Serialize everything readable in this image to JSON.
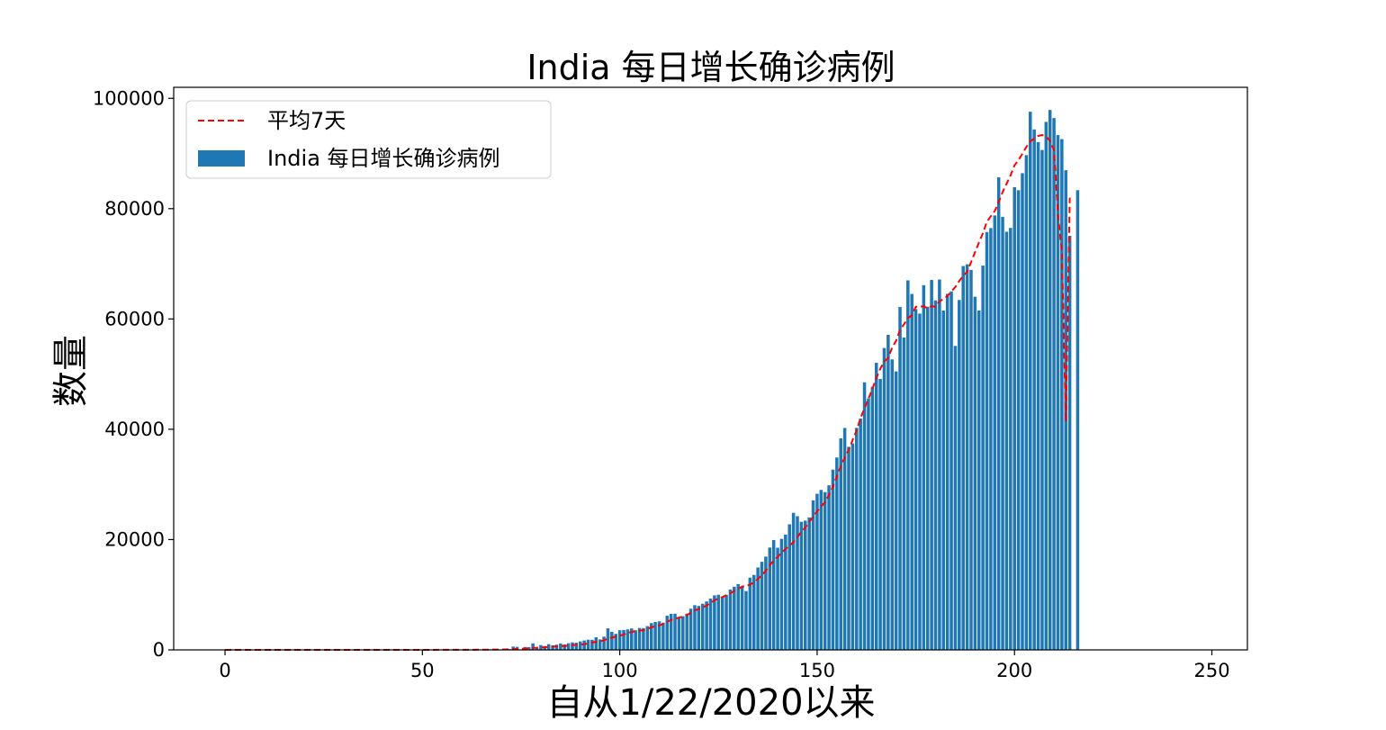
{
  "chart_data": {
    "type": "bar",
    "title": "India 每日增长确诊病例",
    "xlabel": "自从1/22/2020以来",
    "ylabel": "数量",
    "xlim": [
      -13,
      259
    ],
    "ylim": [
      0,
      102000
    ],
    "xticks": [
      0,
      50,
      100,
      150,
      200,
      250
    ],
    "yticks": [
      0,
      20000,
      40000,
      60000,
      80000,
      100000
    ],
    "grid": false,
    "legend_position": "top-left",
    "series": [
      {
        "name": "India 每日增长确诊病例",
        "kind": "bar",
        "color": "#1f77b4",
        "x_start": 0,
        "values": [
          0,
          0,
          0,
          0,
          0,
          0,
          0,
          0,
          0,
          1,
          0,
          1,
          1,
          0,
          0,
          0,
          0,
          0,
          0,
          0,
          0,
          0,
          0,
          0,
          0,
          0,
          0,
          0,
          0,
          0,
          0,
          0,
          0,
          0,
          0,
          0,
          0,
          0,
          0,
          0,
          3,
          0,
          0,
          1,
          22,
          2,
          1,
          3,
          5,
          9,
          15,
          8,
          11,
          2,
          14,
          19,
          17,
          27,
          10,
          17,
          24,
          22,
          22,
          78,
          85,
          86,
          0,
          109,
          89,
          75,
          85,
          227,
          146,
          601,
          545,
          24,
          515,
          506,
          1190,
          356,
          872,
          703,
          1035,
          839,
          944,
          1165,
          982,
          1200,
          1347,
          1297,
          1541,
          1707,
          1843,
          1835,
          2293,
          1893,
          2393,
          3902,
          3280,
          2910,
          3565,
          3616,
          3722,
          3887,
          3558,
          3970,
          3953,
          4311,
          4862,
          5049,
          5173,
          4940,
          6190,
          6538,
          6561,
          5800,
          6100,
          6566,
          7466,
          8105,
          7964,
          8364,
          8789,
          9304,
          9887,
          9996,
          9635,
          9982,
          10956,
          11458,
          11929,
          11502,
          10667,
          13103,
          13586,
          14933,
          15968,
          16922,
          18552,
          19906,
          18522,
          20131,
          20903,
          22771,
          24850,
          24248,
          23229,
          23435,
          24018,
          27114,
          28308,
          29007,
          28606,
          29842,
          32687,
          34884,
          38353,
          40235,
          36824,
          37426,
          40258,
          41939,
          48513,
          45601,
          47705,
          52050,
          49130,
          54735,
          57117,
          52672,
          50488,
          62159,
          56627,
          66999,
          64531,
          61795,
          60975,
          66121,
          62212,
          67070,
          63364,
          67151,
          61537,
          64553,
          65002,
          55113,
          63442,
          69596,
          69905,
          68898,
          64026,
          61542,
          69674,
          75760,
          76472,
          78761,
          85687,
          78512,
          75808,
          76504,
          83883,
          83341,
          86432,
          89706,
          97570,
          94372,
          92071,
          90633,
          95735,
          97894,
          96424,
          93337,
          92605,
          86961,
          75083,
          0,
          83347
        ],
        "values_note": "one bar per day starting at x=0"
      },
      {
        "name": "平均7天",
        "kind": "line",
        "style": "dashed",
        "color": "#ff0000",
        "x_start": 0,
        "values": [
          0,
          0,
          0,
          0,
          0,
          0,
          0,
          0,
          0,
          0,
          0,
          0,
          0,
          0,
          0,
          0,
          0,
          0,
          0,
          0,
          0,
          0,
          0,
          0,
          0,
          0,
          0,
          0,
          0,
          0,
          0,
          0,
          0,
          0,
          0,
          0,
          0,
          0,
          0,
          0,
          0,
          0,
          1,
          1,
          4,
          4,
          4,
          4,
          5,
          6,
          8,
          9,
          10,
          9,
          11,
          12,
          14,
          17,
          17,
          17,
          18,
          19,
          19,
          24,
          33,
          41,
          46,
          52,
          59,
          65,
          71,
          88,
          100,
          140,
          182,
          182,
          244,
          298,
          374,
          397,
          451,
          473,
          548,
          600,
          636,
          689,
          697,
          789,
          862,
          909,
          970,
          1040,
          1156,
          1331,
          1467,
          1549,
          1743,
          2032,
          2226,
          2408,
          2556,
          2782,
          3057,
          3246,
          3398,
          3496,
          3566,
          3832,
          4079,
          4294,
          4457,
          4689,
          5075,
          5444,
          5650,
          5858,
          6018,
          6302,
          6737,
          7165,
          7383,
          7736,
          8033,
          8533,
          8974,
          9302,
          9577,
          9905,
          10254,
          10665,
          11087,
          11473,
          11581,
          11844,
          12237,
          12879,
          13525,
          14331,
          15339,
          16195,
          16868,
          17618,
          18301,
          18880,
          19546,
          20463,
          21418,
          22183,
          23204,
          24131,
          25128,
          25965,
          26803,
          28054,
          29609,
          31443,
          33372,
          34880,
          36230,
          38061,
          39769,
          42055,
          43807,
          45530,
          47344,
          49247,
          50989,
          52271,
          52941,
          54811,
          56036,
          57990,
          59023,
          60111,
          60711,
          62219,
          62226,
          62292,
          61924,
          62312,
          62219,
          63213,
          63597,
          64153,
          64985,
          65780,
          66879,
          67823,
          68575,
          70303,
          72084,
          73862,
          75563,
          77612,
          78614,
          79557,
          81206,
          83020,
          84530,
          86045,
          87841,
          88802,
          89957,
          91187,
          92183,
          92727,
          93190,
          93350,
          93089,
          92282,
          90618,
          79087,
          72222,
          41432,
          82000
        ],
        "values_note": "7-day moving average, estimated"
      }
    ]
  }
}
